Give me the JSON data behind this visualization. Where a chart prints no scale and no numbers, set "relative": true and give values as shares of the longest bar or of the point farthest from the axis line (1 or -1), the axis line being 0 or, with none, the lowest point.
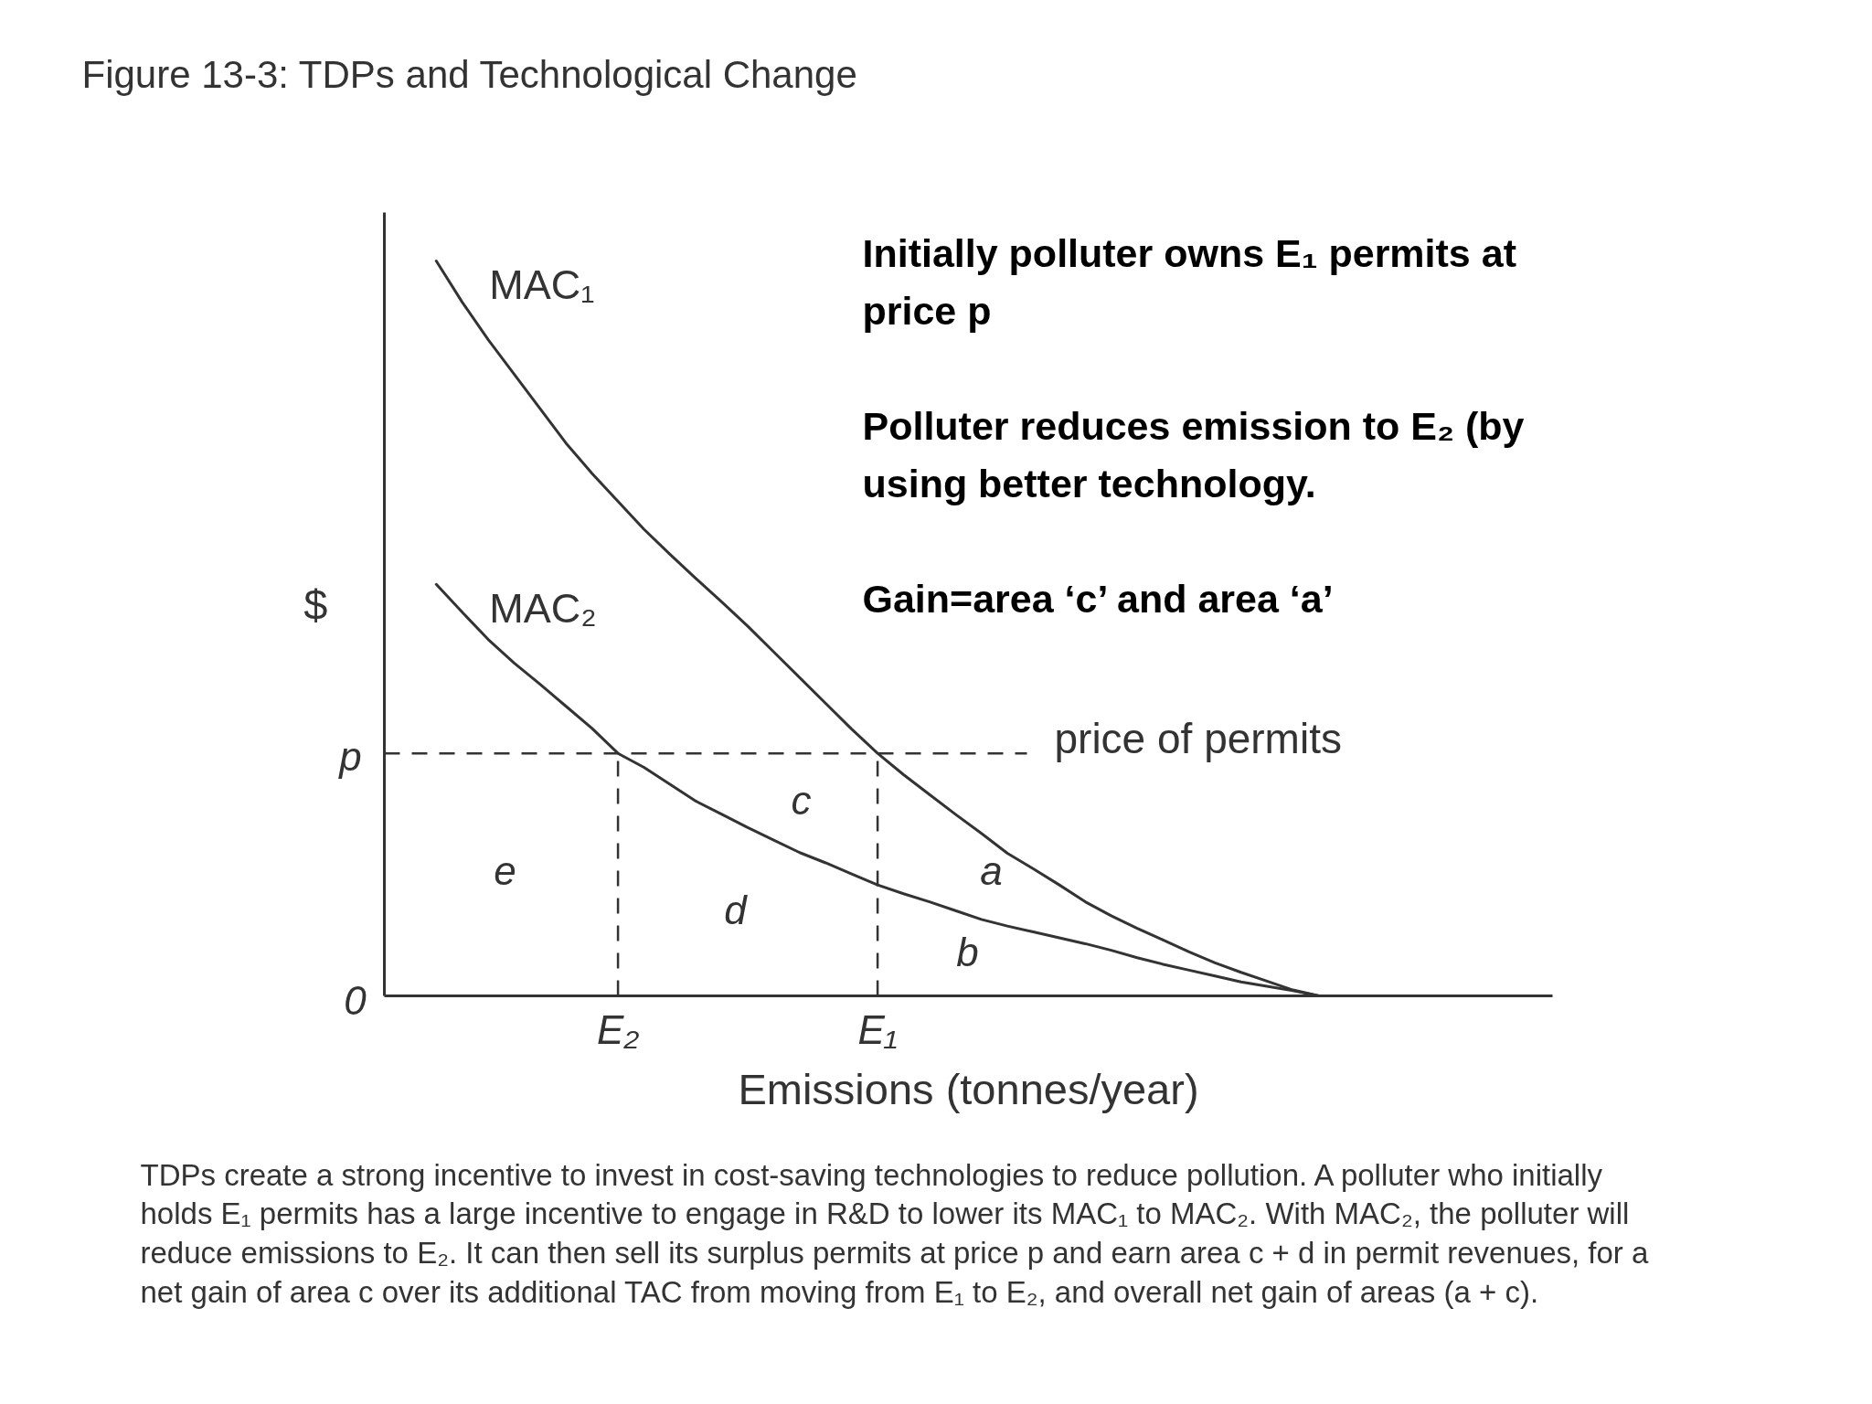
{
  "chart_data": {
    "type": "line",
    "title": "Figure 13-3: TDPs and Technological Change",
    "xlabel": "Emissions (tonnes/year)",
    "ylabel": "$",
    "relative": true,
    "tick_labels": "x",
    "categories": [
      null,
      null,
      null,
      null,
      null,
      null,
      null,
      null,
      null,
      "E₂",
      null,
      null,
      null,
      null,
      null,
      null,
      null,
      null,
      null,
      "E₁",
      null,
      null,
      null,
      null,
      null,
      null,
      null,
      null,
      null,
      null,
      null,
      null,
      null,
      null,
      null,
      null,
      null,
      null,
      null,
      null,
      null,
      null,
      null,
      null,
      null,
      null
    ],
    "series": [
      {
        "name": "MAC₁",
        "color": "#333333",
        "values": [
          null,
          null,
          1.0,
          0.944,
          0.893,
          0.846,
          0.799,
          0.752,
          0.711,
          0.673,
          0.635,
          0.601,
          0.568,
          0.536,
          0.503,
          0.468,
          0.433,
          0.398,
          0.363,
          0.33,
          0.301,
          0.274,
          0.247,
          0.221,
          0.194,
          0.173,
          0.151,
          0.128,
          0.109,
          0.092,
          0.076,
          0.06,
          0.045,
          0.032,
          0.02,
          0.008,
          0,
          null,
          null,
          null,
          null,
          null,
          null,
          null,
          null,
          null
        ]
      },
      {
        "name": "MAC₂",
        "color": "#333333",
        "values": [
          null,
          null,
          0.56,
          0.522,
          0.485,
          0.453,
          0.424,
          0.394,
          0.364,
          0.33,
          0.311,
          0.288,
          0.265,
          0.247,
          0.229,
          0.212,
          0.195,
          0.181,
          0.166,
          0.151,
          0.139,
          0.128,
          0.116,
          0.104,
          0.095,
          0.087,
          0.079,
          0.071,
          0.062,
          0.052,
          0.043,
          0.035,
          0.027,
          0.019,
          0.013,
          0.007,
          0,
          null,
          null,
          null,
          null,
          null,
          null,
          null,
          null,
          null
        ]
      }
    ],
    "ref_lines": [
      {
        "axis": "y",
        "value": 0.33,
        "label": "price of permits",
        "line_style": "dashed",
        "color": "#333333"
      },
      {
        "axis": "x",
        "value": "E₂",
        "line_style": "dashed",
        "color": "#333333"
      },
      {
        "axis": "x",
        "value": "E₁",
        "line_style": "dashed",
        "color": "#333333"
      }
    ],
    "annotations": [
      "0",
      "p",
      "e",
      "d",
      "c",
      "a",
      "b",
      "Initially polluter owns E₁ permits at price p",
      "Polluter reduces emission to E₂ (by using better technology.",
      "Gain=area ‘c’ and area ‘a’",
      "TDPs create a strong incentive to invest in cost-saving technologies to reduce pollution. A polluter who initially holds E₁ permits has a large incentive to engage in R&D to lower its MAC₁ to MAC₂. With MAC₂, the polluter will reduce emissions to E₂. It can then sell its surplus permits at price p and earn area c + d in permit revenues, for a net gain of area c over its additional TAC from moving from E₁ to E₂, and overall net gain of areas (a + c)."
    ]
  }
}
